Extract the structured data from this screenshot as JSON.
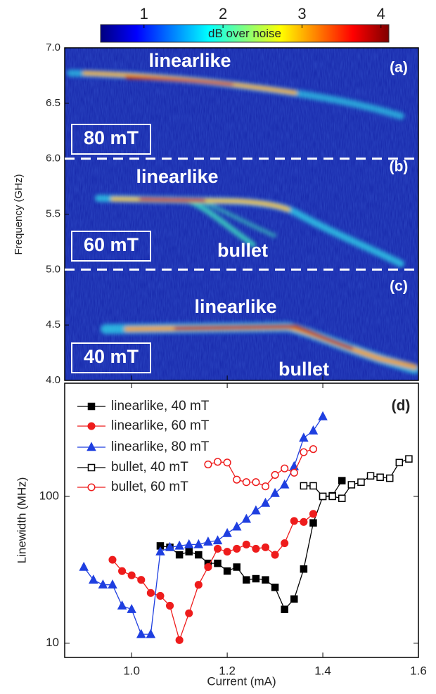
{
  "chart_data": [
    {
      "type": "heatmap",
      "colorbar": {
        "label": "dB over noise",
        "lim": [
          0.45,
          4.1
        ],
        "ticks": [
          1,
          2,
          3,
          4
        ],
        "colormap": "jet"
      },
      "ylabel": "Frequency (GHz)",
      "xlim": [
        0.86,
        1.6
      ],
      "xticks": [
        1.0,
        1.2,
        1.4
      ],
      "ylim": [
        4.0,
        7.0
      ],
      "yticks": [
        {
          "value": 4,
          "label": "4.0"
        },
        4.5,
        {
          "value": 5,
          "label": "5.0"
        },
        5.5,
        {
          "value": 6,
          "label": "6.0"
        },
        6.5,
        {
          "value": 7,
          "label": "7.0"
        }
      ],
      "dashed_lines": [
        6,
        5
      ],
      "annotations": [
        {
          "text": "linearlike",
          "boxed": false
        },
        {
          "text": "(a)",
          "boxed": false
        },
        {
          "text": "80 mT",
          "boxed": true
        },
        {
          "text": "linearlike",
          "boxed": false
        },
        {
          "text": "(b)",
          "boxed": false
        },
        {
          "text": "60 mT",
          "boxed": true
        },
        {
          "text": "bullet",
          "boxed": false
        },
        {
          "text": "(c)",
          "boxed": false
        },
        {
          "text": "linearlike",
          "boxed": false
        },
        {
          "text": "40 mT",
          "boxed": true
        },
        {
          "text": "bullet",
          "boxed": false
        }
      ]
    },
    {
      "type": "line",
      "log_y": true,
      "legend": "upper left",
      "panel_label": "(d)",
      "xlabel": "Current (mA)",
      "ylabel": "Linewidth (MHz)",
      "xlim": [
        0.86,
        1.6
      ],
      "xticks": [
        {
          "value": 1,
          "label": "1.0"
        },
        1.2,
        1.4,
        1.6
      ],
      "ylim": [
        8,
        590
      ],
      "yticks": [
        10,
        100
      ],
      "series": [
        {
          "name": "linearlike, 40 mT",
          "color": "#000000",
          "marker": "square",
          "filled": true,
          "x": [
            1.06,
            1.08,
            1.1,
            1.12,
            1.14,
            1.16,
            1.18,
            1.2,
            1.22,
            1.24,
            1.26,
            1.28,
            1.3,
            1.32,
            1.34,
            1.36,
            1.38,
            1.4,
            1.42,
            1.44
          ],
          "values": [
            46,
            45,
            40,
            42,
            40,
            35,
            35,
            31,
            33,
            27,
            27.5,
            27,
            24,
            17,
            20,
            32,
            66,
            100,
            101,
            128
          ]
        },
        {
          "name": "linearlike, 60 mT",
          "color": "#ee1c1c",
          "marker": "circle",
          "filled": true,
          "x": [
            0.96,
            0.98,
            1.0,
            1.02,
            1.04,
            1.06,
            1.08,
            1.1,
            1.12,
            1.14,
            1.16,
            1.18,
            1.2,
            1.22,
            1.24,
            1.26,
            1.28,
            1.3,
            1.32,
            1.34,
            1.36,
            1.38
          ],
          "values": [
            37,
            31,
            29,
            27,
            22,
            21,
            18,
            10.5,
            16,
            25,
            33,
            44,
            42,
            44,
            47,
            44,
            45,
            40,
            48,
            68,
            67,
            76
          ]
        },
        {
          "name": "linearlike, 80 mT",
          "color": "#1f3fe0",
          "marker": "triangle",
          "filled": true,
          "x": [
            0.9,
            0.92,
            0.94,
            0.96,
            0.98,
            1.0,
            1.02,
            1.04,
            1.06,
            1.08,
            1.1,
            1.12,
            1.14,
            1.16,
            1.18,
            1.2,
            1.22,
            1.24,
            1.26,
            1.28,
            1.3,
            1.32,
            1.34,
            1.36,
            1.38,
            1.4
          ],
          "values": [
            33,
            27,
            25,
            25,
            18,
            17,
            11.5,
            11.5,
            42,
            45,
            46,
            47,
            47,
            49,
            50,
            56,
            62,
            70,
            80,
            90,
            105,
            120,
            160,
            250,
            280,
            350
          ]
        },
        {
          "name": "bullet, 40 mT",
          "color": "#000000",
          "marker": "square",
          "filled": false,
          "x": [
            1.36,
            1.38,
            1.4,
            1.42,
            1.44,
            1.46,
            1.48,
            1.5,
            1.52,
            1.54,
            1.56,
            1.58
          ],
          "values": [
            118,
            118,
            100,
            100,
            97,
            120,
            125,
            138,
            135,
            133,
            170,
            180
          ]
        },
        {
          "name": "bullet, 60 mT",
          "color": "#ee1c1c",
          "marker": "circle",
          "filled": false,
          "x": [
            1.16,
            1.18,
            1.2,
            1.22,
            1.24,
            1.26,
            1.28,
            1.3,
            1.32,
            1.34,
            1.36,
            1.38
          ],
          "values": [
            165,
            172,
            170,
            130,
            125,
            125,
            117,
            140,
            155,
            145,
            200,
            210
          ]
        }
      ]
    }
  ]
}
